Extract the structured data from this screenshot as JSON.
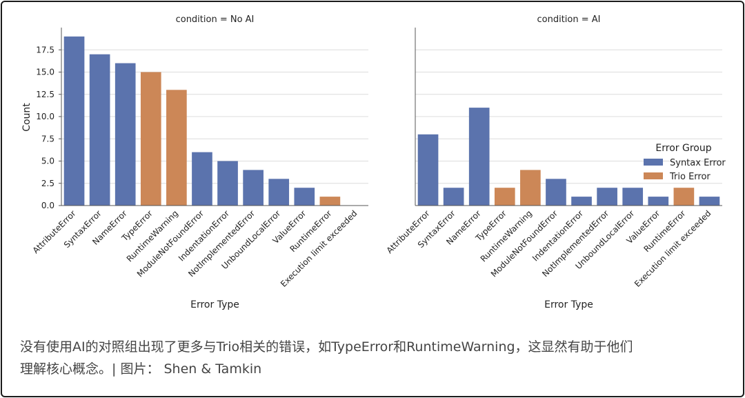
{
  "chart_data": {
    "type": "bar",
    "xlabel": "Error Type",
    "ylabel": "Count",
    "ylim": [
      0,
      20
    ],
    "yticks": [
      "0.0",
      "2.5",
      "5.0",
      "7.5",
      "10.0",
      "12.5",
      "15.0",
      "17.5"
    ],
    "grid": "horizontal",
    "legend": {
      "title": "Error Group",
      "placement": "right",
      "entries": [
        {
          "name": "Syntax Error",
          "color": "#5b73ad"
        },
        {
          "name": "Trio Error",
          "color": "#cc8757"
        }
      ]
    },
    "panels": [
      {
        "title": "condition = No AI",
        "categories": [
          "AttributeError",
          "SyntaxError",
          "NameError",
          "TypeError",
          "RuntimeWarning",
          "ModuleNotFoundError",
          "IndentationError",
          "NotImplementedError",
          "UnboundLocalError",
          "ValueError",
          "RuntimeError",
          "Execution limit exceeded"
        ],
        "values": [
          19,
          17,
          16,
          15,
          13,
          6,
          5,
          4,
          3,
          2,
          1,
          0
        ],
        "groups": [
          "Syntax Error",
          "Syntax Error",
          "Syntax Error",
          "Trio Error",
          "Trio Error",
          "Syntax Error",
          "Syntax Error",
          "Syntax Error",
          "Syntax Error",
          "Syntax Error",
          "Trio Error",
          "Syntax Error"
        ]
      },
      {
        "title": "condition = AI",
        "categories": [
          "AttributeError",
          "SyntaxError",
          "NameError",
          "TypeError",
          "RuntimeWarning",
          "ModuleNotFoundError",
          "IndentationError",
          "NotImplementedError",
          "UnboundLocalError",
          "ValueError",
          "RuntimeError",
          "Execution limit exceeded"
        ],
        "values": [
          8,
          2,
          11,
          2,
          4,
          3,
          1,
          2,
          2,
          1,
          2,
          1
        ],
        "groups": [
          "Syntax Error",
          "Syntax Error",
          "Syntax Error",
          "Trio Error",
          "Trio Error",
          "Syntax Error",
          "Syntax Error",
          "Syntax Error",
          "Syntax Error",
          "Syntax Error",
          "Trio Error",
          "Syntax Error"
        ]
      }
    ]
  },
  "caption": {
    "line1": "没有使用AI的对照组出现了更多与Trio相关的错误，如TypeError和RuntimeWarning，这显然有助于他们",
    "line2": "理解核心概念。| 图片： Shen & Tamkin"
  }
}
